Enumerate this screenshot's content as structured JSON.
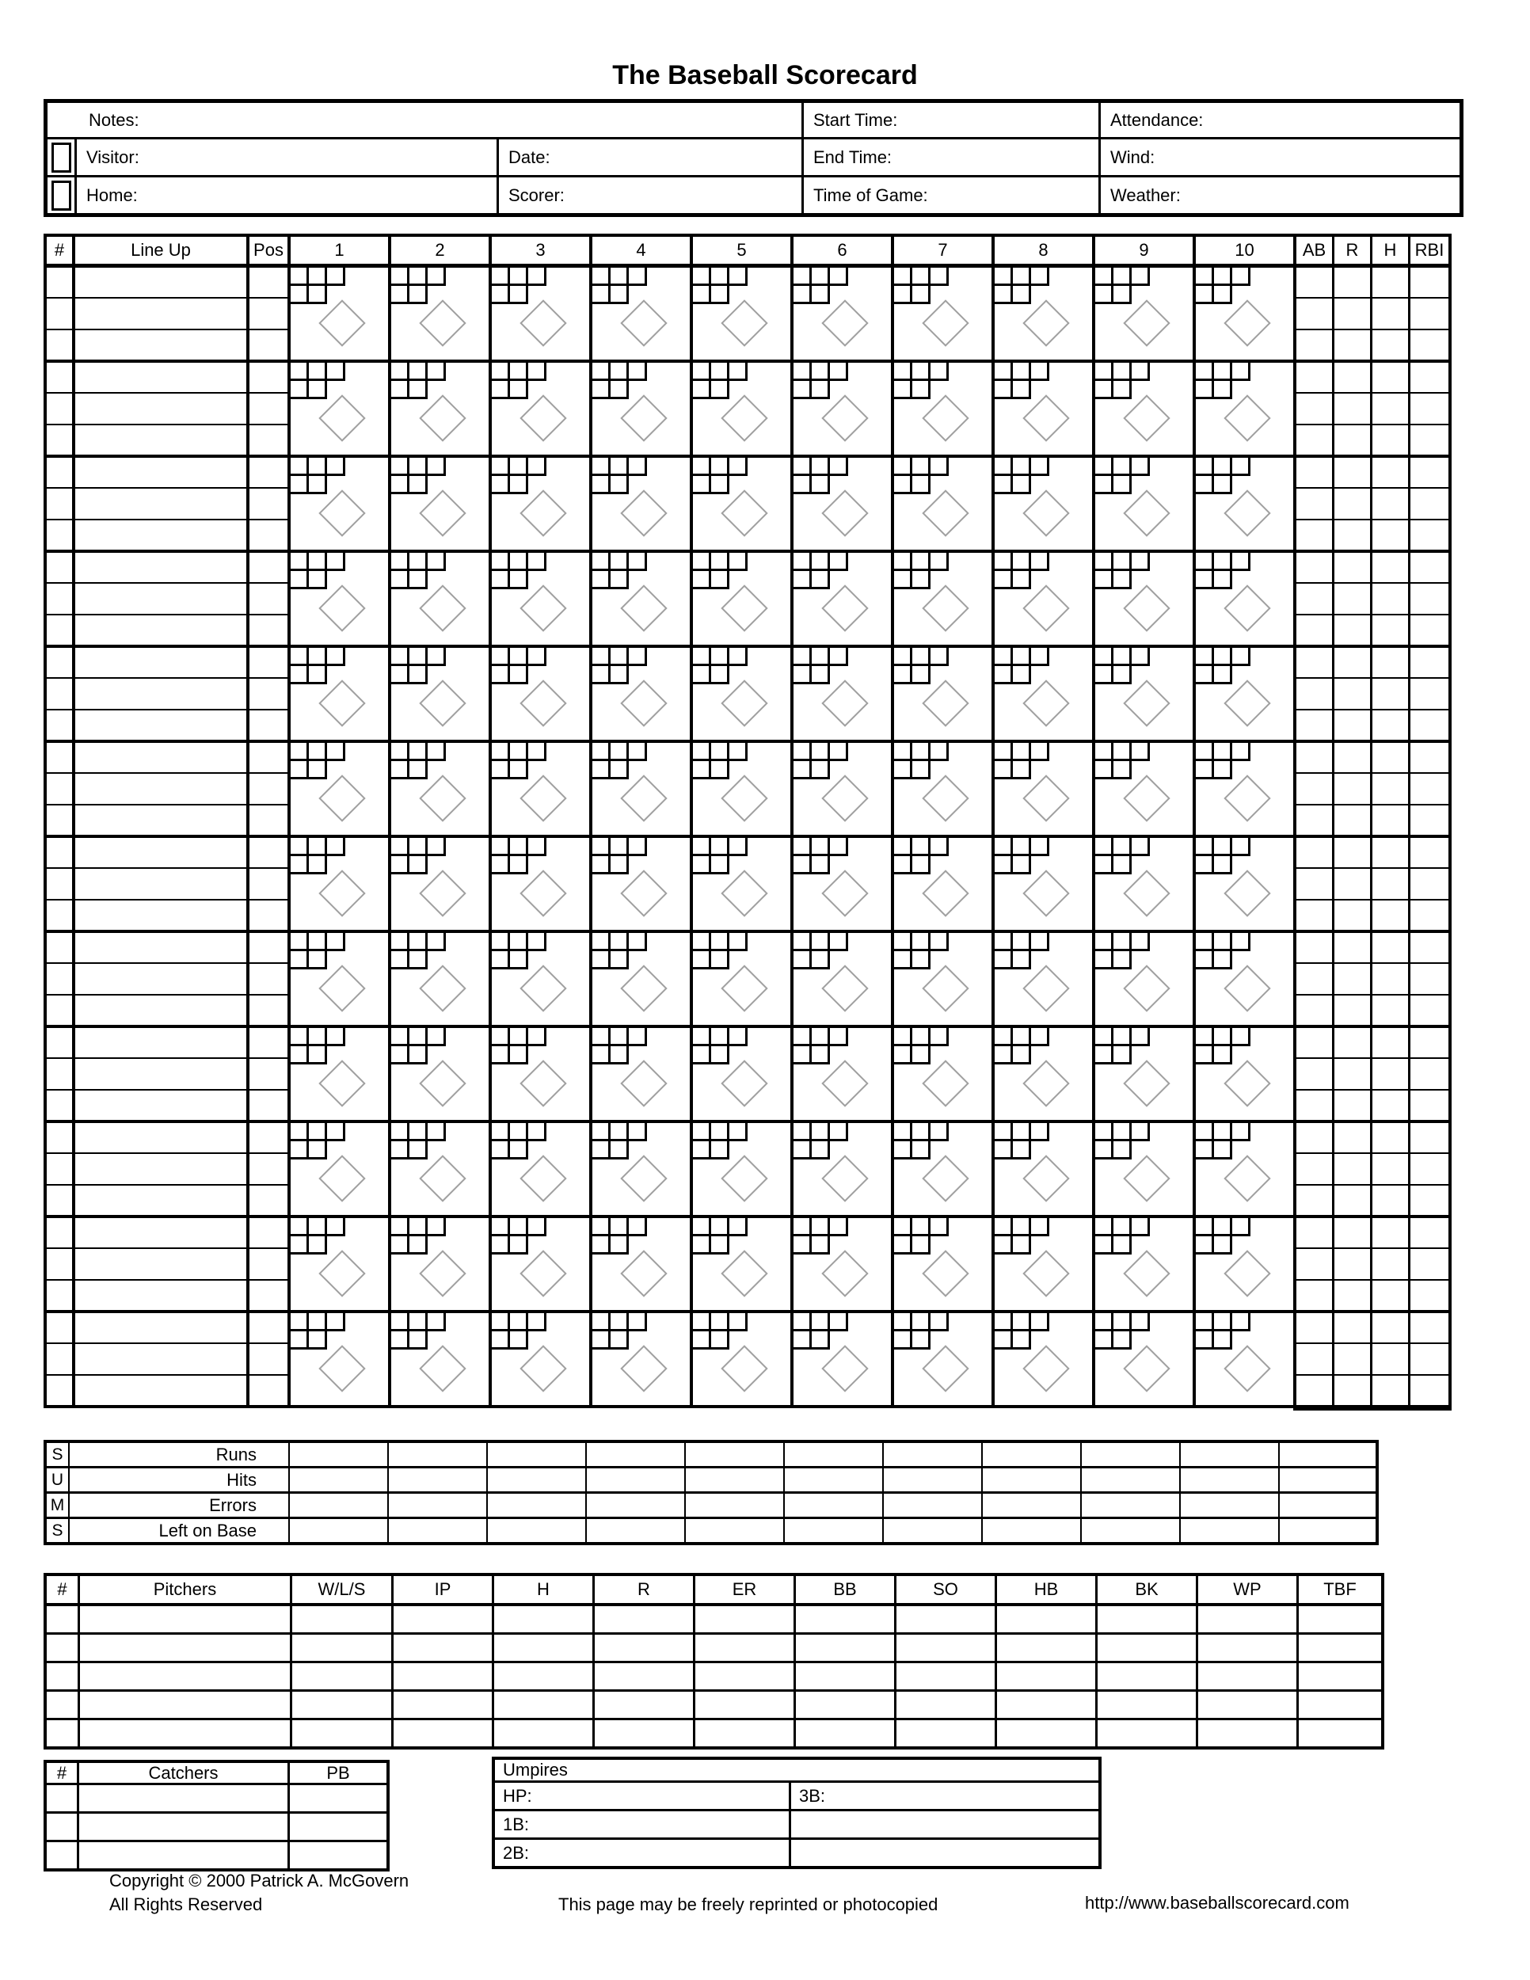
{
  "title": "The Baseball Scorecard",
  "header": {
    "notes_label": "Notes:",
    "visitor_label": "Visitor:",
    "home_label": "Home:",
    "date_label": "Date:",
    "scorer_label": "Scorer:",
    "start_time_label": "Start Time:",
    "end_time_label": "End Time:",
    "time_of_game_label": "Time of Game:",
    "attendance_label": "Attendance:",
    "wind_label": "Wind:",
    "weather_label": "Weather:"
  },
  "scoring_grid": {
    "number_header": "#",
    "lineup_header": "Line Up",
    "pos_header": "Pos",
    "inning_headers": [
      "1",
      "2",
      "3",
      "4",
      "5",
      "6",
      "7",
      "8",
      "9",
      "10"
    ],
    "stat_headers": [
      "AB",
      "R",
      "H",
      "RBI"
    ],
    "player_rows": 12,
    "sub_rows_per_player": 3,
    "ball_boxes": 3,
    "strike_boxes": 2
  },
  "sums": {
    "side_letters": [
      "S",
      "U",
      "M",
      "S"
    ],
    "row_labels": [
      "Runs",
      "Hits",
      "Errors",
      "Left on Base"
    ],
    "data_columns": 11
  },
  "pitchers": {
    "headers": [
      "#",
      "Pitchers",
      "W/L/S",
      "IP",
      "H",
      "R",
      "ER",
      "BB",
      "SO",
      "HB",
      "BK",
      "WP",
      "TBF"
    ],
    "rows": 5
  },
  "catchers": {
    "headers": [
      "#",
      "Catchers",
      "PB"
    ],
    "rows": 3
  },
  "umpires": {
    "title": "Umpires",
    "hp_label": "HP:",
    "third_label": "3B:",
    "first_label": "1B:",
    "second_label": "2B:"
  },
  "footer": {
    "copyright": "Copyright © 2000 Patrick A. McGovern",
    "rights": "All Rights Reserved",
    "reprint": "This page may be freely reprinted or photocopied",
    "url": "http://www.baseballscorecard.com"
  },
  "colors": {
    "ink": "#000000",
    "diamond_outline": "#a0a0a0",
    "background": "#ffffff"
  }
}
